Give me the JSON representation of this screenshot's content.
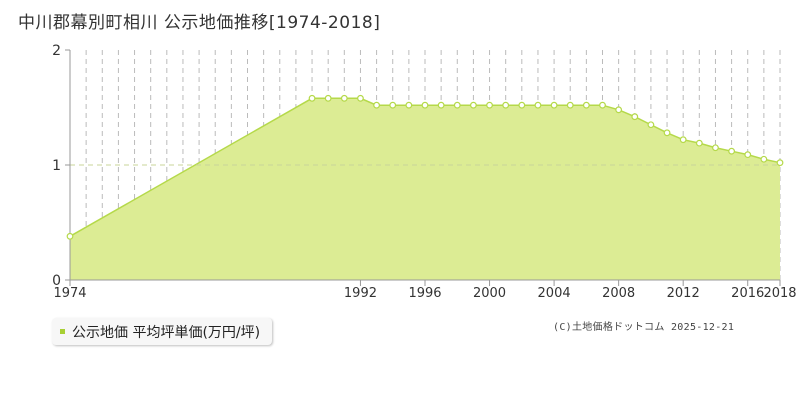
{
  "title": "中川郡幕別町相川 公示地価推移[1974-2018]",
  "legend_label": "公示地価 平均坪単価(万円/坪)",
  "copyright": "(C)土地価格ドットコム 2025-12-21",
  "colors": {
    "fill": "#dcec94",
    "line": "#b5d94a",
    "marker_fill": "#ffffff",
    "grid": "#bbbbbb",
    "axis": "#999999",
    "legend_marker": "#a8d034"
  },
  "chart_data": {
    "type": "area",
    "title": "中川郡幕別町相川 公示地価推移[1974-2018]",
    "xlabel": "",
    "ylabel": "",
    "xlim": [
      1974,
      2018
    ],
    "ylim": [
      0,
      2
    ],
    "x_ticks": [
      1974,
      1992,
      1996,
      2000,
      2004,
      2008,
      2012,
      2016,
      2018
    ],
    "y_ticks": [
      0,
      1,
      2
    ],
    "grid": true,
    "legend": "bottom-left",
    "series": [
      {
        "name": "公示地価 平均坪単価(万円/坪)",
        "points": [
          [
            1974,
            0.38
          ],
          [
            1989,
            1.58
          ],
          [
            1990,
            1.58
          ],
          [
            1991,
            1.58
          ],
          [
            1992,
            1.58
          ],
          [
            1993,
            1.52
          ],
          [
            1994,
            1.52
          ],
          [
            1995,
            1.52
          ],
          [
            1996,
            1.52
          ],
          [
            1997,
            1.52
          ],
          [
            1998,
            1.52
          ],
          [
            1999,
            1.52
          ],
          [
            2000,
            1.52
          ],
          [
            2001,
            1.52
          ],
          [
            2002,
            1.52
          ],
          [
            2003,
            1.52
          ],
          [
            2004,
            1.52
          ],
          [
            2005,
            1.52
          ],
          [
            2006,
            1.52
          ],
          [
            2007,
            1.52
          ],
          [
            2008,
            1.48
          ],
          [
            2009,
            1.42
          ],
          [
            2010,
            1.35
          ],
          [
            2011,
            1.28
          ],
          [
            2012,
            1.22
          ],
          [
            2013,
            1.19
          ],
          [
            2014,
            1.15
          ],
          [
            2015,
            1.12
          ],
          [
            2016,
            1.09
          ],
          [
            2017,
            1.05
          ],
          [
            2018,
            1.02
          ]
        ]
      }
    ]
  }
}
